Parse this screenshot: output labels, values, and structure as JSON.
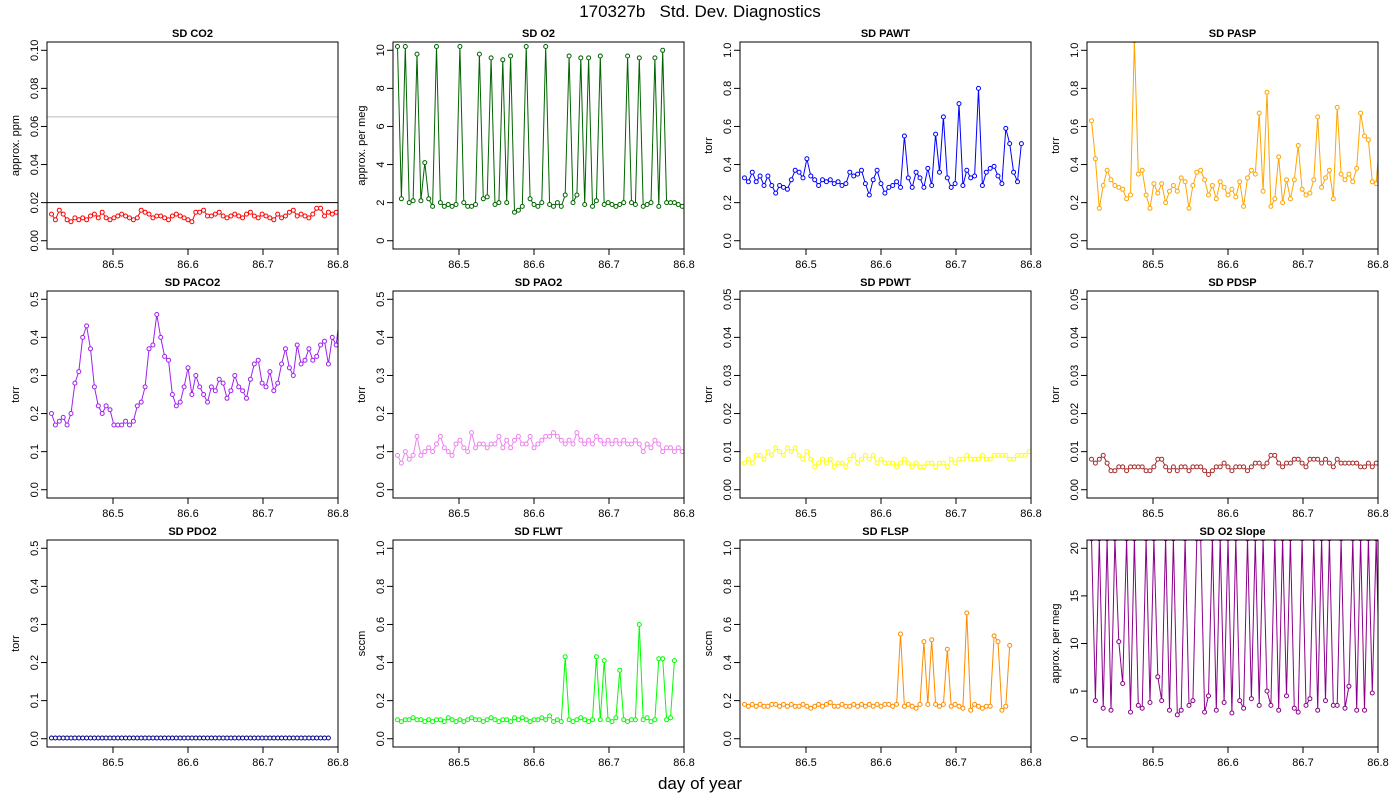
{
  "title": "170327b   Std. Dev. Diagnostics",
  "xlabel": "day of year",
  "chart_data": [
    {
      "type": "line",
      "title": "SD CO2",
      "ylabel": "approx. ppm",
      "color": "#ff0000",
      "xlim": [
        86.412,
        86.8
      ],
      "ylim": [
        0,
        0.1
      ],
      "xticks": [
        "86.5",
        "86.6",
        "86.7",
        "86.8"
      ],
      "yticks": [
        "0.00",
        "0.02",
        "0.04",
        "0.06",
        "0.08",
        "0.10"
      ],
      "hlines": [
        {
          "y": 0.065,
          "color": "#bbbbbb"
        },
        {
          "y": 0.02,
          "color": "#000000"
        }
      ],
      "x_start": 86.418,
      "x_step": 0.0052,
      "values": [
        0.014,
        0.011,
        0.016,
        0.014,
        0.011,
        0.01,
        0.012,
        0.011,
        0.012,
        0.011,
        0.013,
        0.014,
        0.012,
        0.015,
        0.012,
        0.011,
        0.012,
        0.013,
        0.014,
        0.013,
        0.012,
        0.011,
        0.012,
        0.016,
        0.015,
        0.014,
        0.012,
        0.013,
        0.013,
        0.012,
        0.011,
        0.013,
        0.014,
        0.013,
        0.012,
        0.011,
        0.01,
        0.015,
        0.015,
        0.016,
        0.013,
        0.013,
        0.014,
        0.015,
        0.013,
        0.012,
        0.013,
        0.014,
        0.013,
        0.012,
        0.014,
        0.015,
        0.013,
        0.012,
        0.014,
        0.013,
        0.012,
        0.011,
        0.014,
        0.012,
        0.013,
        0.015,
        0.016,
        0.013,
        0.014,
        0.013,
        0.012,
        0.014,
        0.017,
        0.017,
        0.013,
        0.015,
        0.014,
        0.015,
        0.016,
        0.012,
        0.013,
        0.012,
        0.011,
        0.013,
        0.013,
        0.01,
        0.012,
        0.014
      ]
    },
    {
      "type": "line",
      "title": "SD O2",
      "ylabel": "approx. per meg",
      "color": "#006400",
      "xlim": [
        86.412,
        86.8
      ],
      "ylim": [
        0,
        10
      ],
      "xticks": [
        "86.5",
        "86.6",
        "86.7",
        "86.8"
      ],
      "yticks": [
        "0",
        "2",
        "4",
        "6",
        "8",
        "10"
      ],
      "hlines": [],
      "x_start": 86.418,
      "x_step": 0.0052,
      "values": [
        10.2,
        2.2,
        10.2,
        2.0,
        2.1,
        9.8,
        2.1,
        4.1,
        2.2,
        1.8,
        10.2,
        2.0,
        1.8,
        1.9,
        1.8,
        1.9,
        10.2,
        2.0,
        1.8,
        1.8,
        1.9,
        9.8,
        2.2,
        2.3,
        9.6,
        1.9,
        2.0,
        9.5,
        2.0,
        9.7,
        1.5,
        1.6,
        1.8,
        10.2,
        2.2,
        1.9,
        1.8,
        2.0,
        10.2,
        1.9,
        1.8,
        2.0,
        1.8,
        2.4,
        9.7,
        2.0,
        2.4,
        9.6,
        1.9,
        9.6,
        1.8,
        2.1,
        9.7,
        1.9,
        2.0,
        1.9,
        1.8,
        1.9,
        2.0,
        9.7,
        2.0,
        1.9,
        9.6,
        1.8,
        1.9,
        2.0,
        9.6,
        1.8,
        10.0,
        2.0,
        2.0,
        2.0,
        1.9,
        1.8,
        1.9,
        9.6,
        1.7,
        1.6,
        1.7,
        9.8,
        1.9,
        2.1,
        9.6,
        1.4
      ]
    },
    {
      "type": "line",
      "title": "SD PAWT",
      "ylabel": "torr",
      "color": "#0000ff",
      "xlim": [
        86.412,
        86.8
      ],
      "ylim": [
        0,
        1
      ],
      "xticks": [
        "86.5",
        "86.6",
        "86.7",
        "86.8"
      ],
      "yticks": [
        "0.0",
        "0.2",
        "0.4",
        "0.6",
        "0.8",
        "1.0"
      ],
      "hlines": [],
      "x_start": 86.418,
      "x_step": 0.0052,
      "values": [
        0.33,
        0.31,
        0.36,
        0.31,
        0.34,
        0.29,
        0.34,
        0.29,
        0.25,
        0.29,
        0.28,
        0.27,
        0.32,
        0.37,
        0.36,
        0.33,
        0.43,
        0.34,
        0.32,
        0.29,
        0.32,
        0.31,
        0.32,
        0.3,
        0.31,
        0.29,
        0.3,
        0.36,
        0.34,
        0.35,
        0.37,
        0.3,
        0.24,
        0.32,
        0.37,
        0.3,
        0.25,
        0.28,
        0.29,
        0.31,
        0.28,
        0.55,
        0.33,
        0.28,
        0.36,
        0.33,
        0.28,
        0.38,
        0.29,
        0.56,
        0.36,
        0.65,
        0.33,
        0.28,
        0.3,
        0.72,
        0.29,
        0.37,
        0.33,
        0.34,
        0.8,
        0.29,
        0.36,
        0.38,
        0.39,
        0.34,
        0.3,
        0.59,
        0.51,
        0.36,
        0.31,
        0.51
      ]
    },
    {
      "type": "line",
      "title": "SD PASP",
      "ylabel": "torr",
      "color": "#ffa500",
      "xlim": [
        86.412,
        86.8
      ],
      "ylim": [
        0,
        1
      ],
      "xticks": [
        "86.5",
        "86.6",
        "86.7",
        "86.8"
      ],
      "yticks": [
        "0.0",
        "0.2",
        "0.4",
        "0.6",
        "0.8",
        "1.0"
      ],
      "hlines": [],
      "x_start": 86.418,
      "x_step": 0.0052,
      "values": [
        0.63,
        0.43,
        0.17,
        0.29,
        0.37,
        0.32,
        0.29,
        0.28,
        0.27,
        0.22,
        0.24,
        1.05,
        0.35,
        0.37,
        0.24,
        0.17,
        0.3,
        0.25,
        0.3,
        0.2,
        0.26,
        0.29,
        0.26,
        0.33,
        0.31,
        0.17,
        0.29,
        0.36,
        0.37,
        0.32,
        0.24,
        0.29,
        0.22,
        0.31,
        0.28,
        0.24,
        0.27,
        0.23,
        0.31,
        0.18,
        0.33,
        0.37,
        0.35,
        0.67,
        0.26,
        0.78,
        0.18,
        0.22,
        0.44,
        0.2,
        0.32,
        0.22,
        0.32,
        0.5,
        0.27,
        0.24,
        0.25,
        0.32,
        0.65,
        0.28,
        0.33,
        0.37,
        0.22,
        0.7,
        0.35,
        0.32,
        0.35,
        0.31,
        0.38,
        0.67,
        0.55,
        0.53,
        0.31,
        0.3,
        0.57
      ]
    },
    {
      "type": "line",
      "title": "SD PACO2",
      "ylabel": "torr",
      "color": "#a020f0",
      "xlim": [
        86.412,
        86.8
      ],
      "ylim": [
        0,
        0.5
      ],
      "xticks": [
        "86.5",
        "86.6",
        "86.7",
        "86.8"
      ],
      "yticks": [
        "0.0",
        "0.1",
        "0.2",
        "0.3",
        "0.4",
        "0.5"
      ],
      "hlines": [],
      "x_start": 86.418,
      "x_step": 0.0052,
      "values": [
        0.2,
        0.17,
        0.18,
        0.19,
        0.17,
        0.2,
        0.28,
        0.31,
        0.4,
        0.43,
        0.37,
        0.27,
        0.22,
        0.2,
        0.22,
        0.21,
        0.17,
        0.17,
        0.17,
        0.18,
        0.17,
        0.18,
        0.22,
        0.23,
        0.27,
        0.37,
        0.38,
        0.46,
        0.4,
        0.35,
        0.34,
        0.25,
        0.22,
        0.23,
        0.27,
        0.32,
        0.25,
        0.3,
        0.27,
        0.25,
        0.23,
        0.27,
        0.26,
        0.29,
        0.28,
        0.24,
        0.26,
        0.3,
        0.27,
        0.26,
        0.24,
        0.29,
        0.33,
        0.34,
        0.28,
        0.27,
        0.31,
        0.26,
        0.28,
        0.33,
        0.37,
        0.32,
        0.3,
        0.38,
        0.33,
        0.34,
        0.37,
        0.34,
        0.35,
        0.38,
        0.39,
        0.33,
        0.4,
        0.38,
        0.47,
        0.42,
        0.38,
        0.44,
        0.42
      ]
    },
    {
      "type": "line",
      "title": "SD PAO2",
      "ylabel": "torr",
      "color": "#ee82ee",
      "xlim": [
        86.412,
        86.8
      ],
      "ylim": [
        0,
        0.5
      ],
      "xticks": [
        "86.5",
        "86.6",
        "86.7",
        "86.8"
      ],
      "yticks": [
        "0.0",
        "0.1",
        "0.2",
        "0.3",
        "0.4",
        "0.5"
      ],
      "hlines": [],
      "x_start": 86.418,
      "x_step": 0.0052,
      "values": [
        0.09,
        0.07,
        0.1,
        0.08,
        0.09,
        0.14,
        0.09,
        0.1,
        0.11,
        0.1,
        0.12,
        0.14,
        0.11,
        0.1,
        0.09,
        0.12,
        0.13,
        0.11,
        0.1,
        0.15,
        0.11,
        0.12,
        0.12,
        0.11,
        0.12,
        0.12,
        0.14,
        0.11,
        0.13,
        0.11,
        0.13,
        0.14,
        0.12,
        0.12,
        0.14,
        0.11,
        0.12,
        0.13,
        0.14,
        0.14,
        0.15,
        0.14,
        0.13,
        0.12,
        0.13,
        0.12,
        0.15,
        0.13,
        0.12,
        0.13,
        0.12,
        0.14,
        0.13,
        0.12,
        0.13,
        0.12,
        0.13,
        0.12,
        0.13,
        0.12,
        0.12,
        0.13,
        0.12,
        0.1,
        0.12,
        0.11,
        0.13,
        0.12,
        0.1,
        0.11,
        0.11,
        0.1,
        0.11,
        0.1,
        0.09,
        0.1,
        0.1
      ]
    },
    {
      "type": "line",
      "title": "SD PDWT",
      "ylabel": "torr",
      "color": "#ffff00",
      "xlim": [
        86.412,
        86.8
      ],
      "ylim": [
        0,
        0.05
      ],
      "xticks": [
        "86.5",
        "86.6",
        "86.7",
        "86.8"
      ],
      "yticks": [
        "0.00",
        "0.01",
        "0.02",
        "0.03",
        "0.04",
        "0.05"
      ],
      "hlines": [],
      "x_start": 86.418,
      "x_step": 0.0052,
      "values": [
        0.007,
        0.008,
        0.007,
        0.009,
        0.009,
        0.008,
        0.01,
        0.009,
        0.011,
        0.01,
        0.009,
        0.011,
        0.01,
        0.011,
        0.009,
        0.008,
        0.01,
        0.008,
        0.006,
        0.007,
        0.008,
        0.007,
        0.008,
        0.006,
        0.007,
        0.007,
        0.006,
        0.008,
        0.009,
        0.007,
        0.008,
        0.009,
        0.008,
        0.009,
        0.007,
        0.008,
        0.007,
        0.007,
        0.007,
        0.006,
        0.007,
        0.008,
        0.007,
        0.006,
        0.007,
        0.006,
        0.006,
        0.007,
        0.007,
        0.006,
        0.007,
        0.007,
        0.006,
        0.008,
        0.007,
        0.008,
        0.008,
        0.009,
        0.008,
        0.008,
        0.008,
        0.009,
        0.008,
        0.008,
        0.009,
        0.009,
        0.009,
        0.009,
        0.008,
        0.008,
        0.009,
        0.009,
        0.009,
        0.01,
        0.01,
        0.009,
        0.01,
        0.01,
        0.01
      ]
    },
    {
      "type": "line",
      "title": "SD PDSP",
      "ylabel": "torr",
      "color": "#a52a2a",
      "xlim": [
        86.412,
        86.8
      ],
      "ylim": [
        0,
        0.05
      ],
      "xticks": [
        "86.5",
        "86.6",
        "86.7",
        "86.8"
      ],
      "yticks": [
        "0.00",
        "0.01",
        "0.02",
        "0.03",
        "0.04",
        "0.05"
      ],
      "hlines": [],
      "x_start": 86.418,
      "x_step": 0.0052,
      "values": [
        0.008,
        0.007,
        0.008,
        0.009,
        0.007,
        0.005,
        0.005,
        0.006,
        0.006,
        0.005,
        0.006,
        0.006,
        0.006,
        0.006,
        0.005,
        0.005,
        0.006,
        0.008,
        0.008,
        0.006,
        0.005,
        0.006,
        0.005,
        0.006,
        0.006,
        0.005,
        0.006,
        0.006,
        0.006,
        0.005,
        0.004,
        0.005,
        0.006,
        0.006,
        0.007,
        0.006,
        0.005,
        0.006,
        0.006,
        0.006,
        0.005,
        0.006,
        0.007,
        0.007,
        0.006,
        0.007,
        0.009,
        0.009,
        0.007,
        0.006,
        0.007,
        0.007,
        0.008,
        0.008,
        0.007,
        0.006,
        0.008,
        0.008,
        0.008,
        0.007,
        0.008,
        0.007,
        0.006,
        0.008,
        0.007,
        0.007,
        0.007,
        0.007,
        0.007,
        0.006,
        0.006,
        0.007,
        0.006,
        0.007,
        0.007,
        0.007,
        0.006,
        0.007,
        0.006
      ]
    },
    {
      "type": "line",
      "title": "SD PDO2",
      "ylabel": "torr",
      "color": "#00008b",
      "xlim": [
        86.412,
        86.8
      ],
      "ylim": [
        0,
        0.5
      ],
      "xticks": [
        "86.5",
        "86.6",
        "86.7",
        "86.8"
      ],
      "yticks": [
        "0.0",
        "0.1",
        "0.2",
        "0.3",
        "0.4",
        "0.5"
      ],
      "hlines": [],
      "x_start": 86.418,
      "x_step": 0.0052,
      "values": [
        0.002,
        0.002,
        0.002,
        0.002,
        0.002,
        0.002,
        0.002,
        0.002,
        0.002,
        0.002,
        0.002,
        0.002,
        0.002,
        0.002,
        0.002,
        0.002,
        0.002,
        0.002,
        0.002,
        0.002,
        0.002,
        0.002,
        0.002,
        0.002,
        0.002,
        0.002,
        0.002,
        0.002,
        0.002,
        0.002,
        0.002,
        0.002,
        0.002,
        0.002,
        0.002,
        0.002,
        0.002,
        0.002,
        0.002,
        0.002,
        0.002,
        0.002,
        0.002,
        0.002,
        0.002,
        0.002,
        0.002,
        0.002,
        0.002,
        0.002,
        0.002,
        0.002,
        0.002,
        0.002,
        0.002,
        0.002,
        0.002,
        0.002,
        0.002,
        0.002,
        0.002,
        0.002,
        0.002,
        0.002,
        0.002,
        0.002,
        0.002,
        0.002,
        0.002,
        0.002,
        0.002,
        0.002
      ]
    },
    {
      "type": "line",
      "title": "SD FLWT",
      "ylabel": "sccm",
      "color": "#00ff00",
      "xlim": [
        86.412,
        86.8
      ],
      "ylim": [
        0,
        1
      ],
      "xticks": [
        "86.5",
        "86.6",
        "86.7",
        "86.8"
      ],
      "yticks": [
        "0.0",
        "0.2",
        "0.4",
        "0.6",
        "0.8",
        "1.0"
      ],
      "hlines": [],
      "x_start": 86.418,
      "x_step": 0.0052,
      "values": [
        0.1,
        0.09,
        0.1,
        0.1,
        0.11,
        0.1,
        0.1,
        0.09,
        0.1,
        0.09,
        0.1,
        0.1,
        0.09,
        0.11,
        0.1,
        0.09,
        0.1,
        0.09,
        0.1,
        0.11,
        0.1,
        0.1,
        0.09,
        0.1,
        0.11,
        0.1,
        0.09,
        0.1,
        0.1,
        0.09,
        0.11,
        0.1,
        0.11,
        0.1,
        0.09,
        0.1,
        0.1,
        0.11,
        0.1,
        0.12,
        0.09,
        0.1,
        0.09,
        0.43,
        0.1,
        0.09,
        0.1,
        0.11,
        0.1,
        0.09,
        0.1,
        0.43,
        0.1,
        0.41,
        0.1,
        0.09,
        0.11,
        0.36,
        0.1,
        0.09,
        0.1,
        0.1,
        0.6,
        0.1,
        0.11,
        0.09,
        0.1,
        0.42,
        0.42,
        0.1,
        0.11,
        0.41
      ]
    },
    {
      "type": "line",
      "title": "SD FLSP",
      "ylabel": "sccm",
      "color": "#ff8c00",
      "xlim": [
        86.412,
        86.8
      ],
      "ylim": [
        0,
        1
      ],
      "xticks": [
        "86.5",
        "86.6",
        "86.7",
        "86.8"
      ],
      "yticks": [
        "0.0",
        "0.2",
        "0.4",
        "0.6",
        "0.8",
        "1.0"
      ],
      "hlines": [],
      "x_start": 86.418,
      "x_step": 0.0052,
      "values": [
        0.18,
        0.17,
        0.18,
        0.17,
        0.18,
        0.17,
        0.17,
        0.18,
        0.18,
        0.17,
        0.18,
        0.17,
        0.18,
        0.17,
        0.17,
        0.18,
        0.17,
        0.16,
        0.17,
        0.18,
        0.17,
        0.18,
        0.19,
        0.17,
        0.17,
        0.18,
        0.17,
        0.17,
        0.18,
        0.17,
        0.18,
        0.17,
        0.18,
        0.17,
        0.18,
        0.17,
        0.18,
        0.18,
        0.17,
        0.18,
        0.55,
        0.17,
        0.18,
        0.17,
        0.16,
        0.18,
        0.51,
        0.18,
        0.52,
        0.18,
        0.17,
        0.18,
        0.47,
        0.17,
        0.18,
        0.17,
        0.16,
        0.66,
        0.15,
        0.18,
        0.17,
        0.16,
        0.17,
        0.17,
        0.54,
        0.51,
        0.15,
        0.17,
        0.49
      ]
    },
    {
      "type": "line",
      "title": "SD O2 Slope",
      "ylabel": "approx. per meg",
      "color": "#8b008b",
      "xlim": [
        86.412,
        86.8
      ],
      "ylim": [
        0,
        20
      ],
      "xticks": [
        "86.5",
        "86.6",
        "86.7",
        "86.8"
      ],
      "yticks": [
        "0",
        "5",
        "10",
        "15",
        "20"
      ],
      "hlines": [],
      "x_start": 86.418,
      "x_step": 0.0052,
      "values": [
        21,
        4.0,
        21,
        3.2,
        21,
        3.0,
        21,
        10.2,
        5.8,
        21,
        2.8,
        21,
        3.5,
        3.2,
        21,
        3.8,
        21,
        6.5,
        4.0,
        21,
        3.0,
        21,
        2.5,
        3.0,
        21,
        3.5,
        4.0,
        21,
        21,
        2.8,
        4.5,
        21,
        3.0,
        21,
        3.8,
        21,
        2.7,
        21,
        4.0,
        3.2,
        21,
        4.2,
        21,
        3.5,
        21,
        5.0,
        3.5,
        21,
        3.0,
        21,
        4.5,
        21,
        3.2,
        2.8,
        21,
        3.5,
        4.2,
        21,
        3.0,
        21,
        4.0,
        21,
        3.5,
        3.5,
        21,
        3.2,
        5.5,
        21,
        3.0,
        21,
        3.0,
        21,
        4.8,
        21,
        3.5
      ]
    }
  ]
}
